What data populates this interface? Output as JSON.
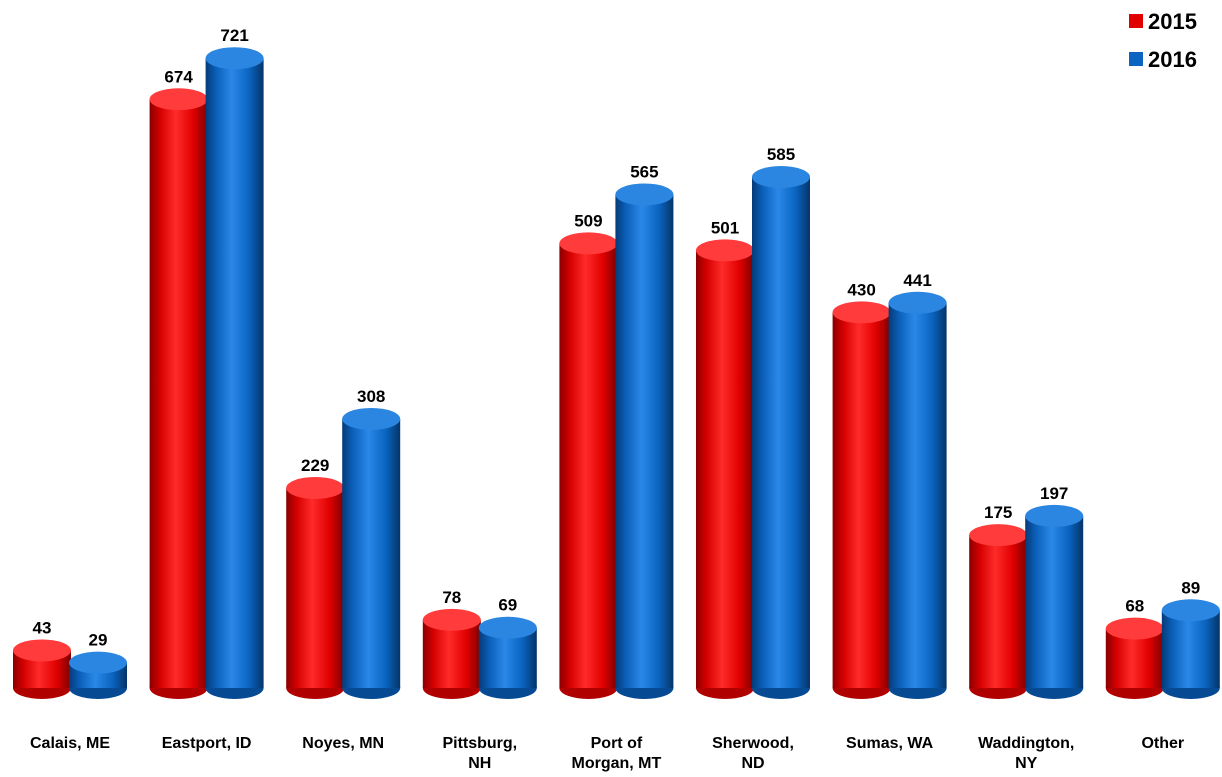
{
  "chart_data": {
    "type": "bar",
    "style": "3d-cylinder",
    "categories": [
      [
        "Calais, ME"
      ],
      [
        "Eastport, ID"
      ],
      [
        "Noyes, MN"
      ],
      [
        "Pittsburg,",
        "NH"
      ],
      [
        "Port of",
        "Morgan, MT"
      ],
      [
        "Sherwood,",
        "ND"
      ],
      [
        "Sumas, WA"
      ],
      [
        "Waddington,",
        "NY"
      ],
      [
        "Other"
      ]
    ],
    "series": [
      {
        "name": "2015",
        "color": "#e00000",
        "values": [
          43,
          674,
          229,
          78,
          509,
          501,
          430,
          175,
          68
        ]
      },
      {
        "name": "2016",
        "color": "#0a64c0",
        "values": [
          29,
          721,
          308,
          69,
          565,
          585,
          441,
          197,
          89
        ]
      }
    ],
    "legend_position": "top-right",
    "grid": false,
    "ylim": [
      0,
      721
    ],
    "data_labels": true
  }
}
